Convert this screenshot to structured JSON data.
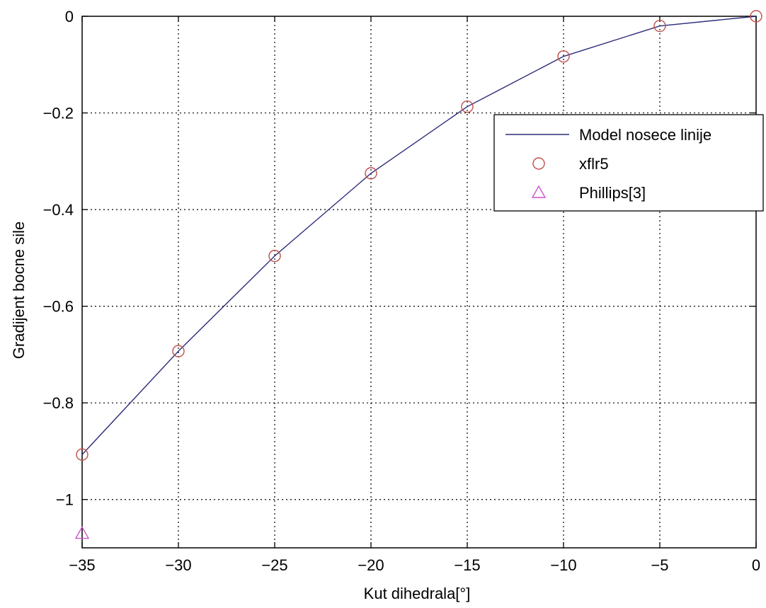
{
  "chart_data": {
    "type": "line",
    "title": "",
    "xlabel": "Kut dihedrala[°]",
    "ylabel": "Gradijent bocne sile",
    "xlim": [
      -35,
      0
    ],
    "ylim": [
      -1.1,
      0
    ],
    "xticks": [
      -35,
      -30,
      -25,
      -20,
      -15,
      -10,
      -5,
      0
    ],
    "xtick_labels": [
      "−35",
      "−30",
      "−25",
      "−20",
      "−15",
      "−10",
      "−5",
      "0"
    ],
    "yticks": [
      0,
      -0.2,
      -0.4,
      -0.6,
      -0.8,
      -1
    ],
    "ytick_labels": [
      "0",
      "−0.2",
      "−0.4",
      "−0.6",
      "−0.8",
      "−1"
    ],
    "grid": true,
    "legend_position": "top-right",
    "series": [
      {
        "name": "Model nosece linije",
        "kind": "line",
        "color": "#2b2b7a",
        "x": [
          -35,
          -30,
          -25,
          -20,
          -15,
          -10,
          -5,
          0
        ],
        "y": [
          -0.907,
          -0.693,
          -0.496,
          -0.325,
          -0.187,
          -0.083,
          -0.02,
          0
        ]
      },
      {
        "name": "xflr5",
        "kind": "marker",
        "marker": "circle",
        "color": "#c0504d",
        "x": [
          -35,
          -30,
          -25,
          -20,
          -15,
          -10,
          -5,
          0
        ],
        "y": [
          -0.907,
          -0.693,
          -0.496,
          -0.325,
          -0.187,
          -0.083,
          -0.02,
          0
        ]
      },
      {
        "name": "Phillips[3]",
        "kind": "marker",
        "marker": "triangle",
        "color": "#cc55cc",
        "x": [
          -35
        ],
        "y": [
          -1.07
        ]
      }
    ]
  }
}
